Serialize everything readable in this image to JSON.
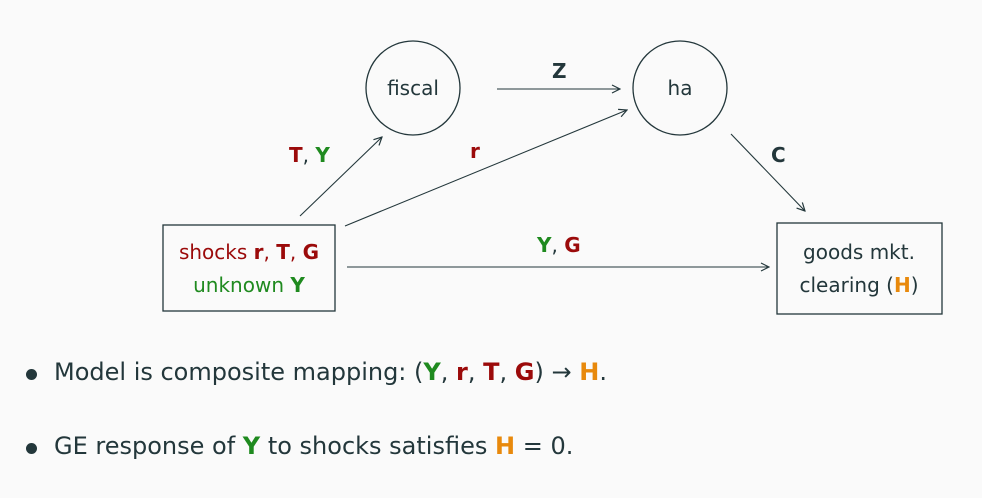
{
  "diagram": {
    "nodes": {
      "fiscal": "fiscal",
      "ha": "ha",
      "shocks_prefix": "shocks ",
      "shocks_r": "r",
      "comma1": ", ",
      "shocks_T": "T",
      "comma2": ", ",
      "shocks_G": "G",
      "unknown_prefix": "unknown ",
      "unknown_Y": "Y",
      "goods_line1": "goods mkt.",
      "goods_line2_prefix": "clearing (",
      "goods_H": "H",
      "goods_line2_suffix": ")"
    },
    "edges": {
      "shocks_fiscal_T": "T",
      "shocks_fiscal_comma": ", ",
      "shocks_fiscal_Y": "Y",
      "shocks_ha_r": "r",
      "fiscal_ha_Z": "Z",
      "ha_goods_C": "C",
      "shocks_goods_Y": "Y",
      "shocks_goods_comma": ", ",
      "shocks_goods_G": "G"
    },
    "colors": {
      "shock": "#9b0a0a",
      "unknown": "#1f8a1f",
      "target": "#e8890c",
      "text": "#23373b"
    }
  },
  "bullets": [
    {
      "prefix": "Model is composite mapping: (",
      "Y": "Y",
      "sep1": ", ",
      "r": "r",
      "sep2": ", ",
      "T": "T",
      "sep3": ", ",
      "G": "G",
      "arrow": ") → ",
      "H": "H",
      "suffix": "."
    },
    {
      "prefix": "GE response of ",
      "Y": "Y",
      "middle": " to shocks satisfies ",
      "H": "H",
      "suffix": " = 0."
    }
  ]
}
